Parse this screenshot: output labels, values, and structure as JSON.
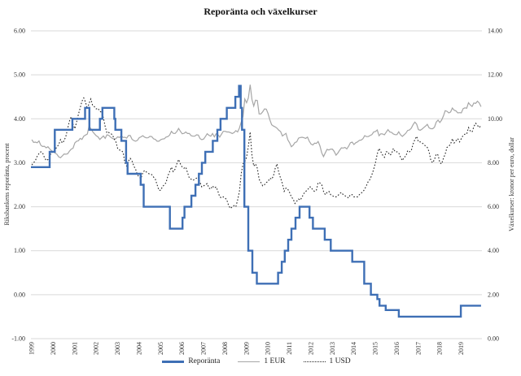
{
  "title": "Reporänta och växelkurser",
  "left_axis": {
    "title": "Riksbankens reporänta, procent",
    "min": -1,
    "max": 6,
    "ticks": [
      "6.00",
      "5.00",
      "4.00",
      "3.00",
      "2.00",
      "1.00",
      "0.00",
      "-1.00"
    ]
  },
  "right_axis": {
    "title": "Växelkurser: kronor per euro, dollar",
    "min": 0,
    "max": 14,
    "ticks": [
      "14.00",
      "12.00",
      "10.00",
      "8.00",
      "6.00",
      "4.00",
      "2.00",
      "0.00"
    ]
  },
  "x_axis": {
    "years": [
      "1999",
      "2000",
      "2001",
      "2002",
      "2003",
      "2004",
      "2005",
      "2006",
      "2007",
      "2008",
      "2009",
      "2010",
      "2011",
      "2012",
      "2013",
      "2014",
      "2015",
      "2016",
      "2017",
      "2018",
      "2019"
    ]
  },
  "colors": {
    "repo_blue": "#3E6FB5",
    "eur_gray": "#A6A6A6",
    "usd_black": "#262626",
    "grid": "#D9D9D9",
    "text": "#333333"
  },
  "legend": [
    {
      "label": "Reporänta",
      "style": "solid-thick",
      "color": "#3E6FB5"
    },
    {
      "label": "1 EUR",
      "style": "solid-thin",
      "color": "#A6A6A6"
    },
    {
      "label": "1 USD",
      "style": "dotted",
      "color": "#262626"
    }
  ],
  "chart_data": {
    "type": "line",
    "title": "Reporänta och växelkurser",
    "x_start": 1999,
    "x_end": 2020,
    "grid": true,
    "legend_position": "bottom",
    "series": [
      {
        "name": "Reporänta",
        "axis": "left",
        "style": "step",
        "color": "#3E6FB5",
        "width": 2.4,
        "points": [
          [
            1999.0,
            2.9
          ],
          [
            1999.87,
            3.25
          ],
          [
            2000.11,
            3.75
          ],
          [
            2000.93,
            4.0
          ],
          [
            2001.52,
            4.25
          ],
          [
            2001.72,
            3.75
          ],
          [
            2002.21,
            4.0
          ],
          [
            2002.33,
            4.25
          ],
          [
            2002.88,
            4.0
          ],
          [
            2002.93,
            3.75
          ],
          [
            2003.21,
            3.5
          ],
          [
            2003.43,
            3.0
          ],
          [
            2003.5,
            2.75
          ],
          [
            2004.11,
            2.5
          ],
          [
            2004.25,
            2.0
          ],
          [
            2005.47,
            1.5
          ],
          [
            2006.06,
            1.75
          ],
          [
            2006.15,
            2.0
          ],
          [
            2006.47,
            2.25
          ],
          [
            2006.66,
            2.5
          ],
          [
            2006.82,
            2.75
          ],
          [
            2006.96,
            3.0
          ],
          [
            2007.12,
            3.25
          ],
          [
            2007.47,
            3.5
          ],
          [
            2007.68,
            3.75
          ],
          [
            2007.83,
            4.0
          ],
          [
            2008.12,
            4.25
          ],
          [
            2008.52,
            4.5
          ],
          [
            2008.69,
            4.75
          ],
          [
            2008.77,
            4.25
          ],
          [
            2008.83,
            3.75
          ],
          [
            2008.94,
            2.0
          ],
          [
            2009.12,
            1.0
          ],
          [
            2009.31,
            0.5
          ],
          [
            2009.52,
            0.25
          ],
          [
            2010.51,
            0.5
          ],
          [
            2010.68,
            0.75
          ],
          [
            2010.82,
            1.0
          ],
          [
            2010.98,
            1.25
          ],
          [
            2011.13,
            1.5
          ],
          [
            2011.32,
            1.75
          ],
          [
            2011.51,
            2.0
          ],
          [
            2011.97,
            1.75
          ],
          [
            2012.13,
            1.5
          ],
          [
            2012.68,
            1.25
          ],
          [
            2012.96,
            1.0
          ],
          [
            2013.96,
            0.75
          ],
          [
            2014.52,
            0.25
          ],
          [
            2014.83,
            0.0
          ],
          [
            2015.13,
            -0.1
          ],
          [
            2015.23,
            -0.25
          ],
          [
            2015.52,
            -0.35
          ],
          [
            2016.13,
            -0.5
          ],
          [
            2019.02,
            -0.25
          ]
        ]
      },
      {
        "name": "1 EUR",
        "axis": "right",
        "style": "line",
        "color": "#A6A6A6",
        "width": 1.2,
        "start": 1999,
        "step_months": 1,
        "values": [
          9.05,
          8.93,
          8.94,
          8.91,
          8.99,
          8.8,
          8.74,
          8.75,
          8.68,
          8.73,
          8.63,
          8.55,
          8.5,
          8.44,
          8.39,
          8.27,
          8.23,
          8.31,
          8.4,
          8.39,
          8.41,
          8.53,
          8.62,
          8.66,
          8.9,
          8.98,
          9.0,
          9.11,
          9.06,
          9.21,
          9.26,
          9.31,
          9.67,
          9.55,
          9.42,
          9.32,
          9.23,
          9.18,
          9.06,
          9.14,
          9.22,
          9.11,
          9.27,
          9.25,
          9.17,
          9.11,
          9.08,
          9.1,
          9.18,
          9.15,
          9.23,
          9.15,
          9.16,
          9.12,
          9.24,
          9.24,
          9.07,
          9.01,
          8.98,
          9.02,
          9.14,
          9.18,
          9.23,
          9.17,
          9.13,
          9.14,
          9.2,
          9.19,
          9.09,
          9.06,
          8.98,
          8.98,
          9.05,
          9.08,
          9.09,
          9.17,
          9.19,
          9.26,
          9.43,
          9.34,
          9.33,
          9.42,
          9.56,
          9.43,
          9.32,
          9.34,
          9.4,
          9.33,
          9.33,
          9.23,
          9.21,
          9.21,
          9.27,
          9.26,
          9.1,
          9.05,
          9.08,
          9.19,
          9.32,
          9.25,
          9.21,
          9.33,
          9.18,
          9.32,
          9.28,
          9.17,
          9.3,
          9.43,
          9.43,
          9.4,
          9.4,
          9.37,
          9.33,
          9.37,
          9.46,
          9.4,
          9.58,
          9.85,
          10.1,
          10.9,
          10.73,
          10.95,
          11.55,
          10.88,
          10.58,
          10.85,
          10.83,
          10.22,
          10.22,
          10.32,
          10.45,
          10.44,
          10.24,
          9.95,
          9.73,
          9.67,
          9.63,
          9.57,
          9.48,
          9.42,
          9.22,
          9.28,
          9.34,
          9.05,
          8.91,
          8.73,
          8.8,
          8.92,
          8.95,
          9.12,
          9.15,
          9.16,
          9.14,
          9.11,
          9.17,
          8.98,
          8.85,
          8.81,
          8.89,
          8.88,
          8.97,
          8.77,
          8.45,
          8.28,
          8.45,
          8.61,
          8.58,
          8.62,
          8.62,
          8.51,
          8.35,
          8.44,
          8.57,
          8.68,
          8.67,
          8.7,
          8.63,
          8.75,
          8.91,
          8.94,
          8.83,
          8.91,
          8.95,
          9.02,
          9.03,
          9.09,
          9.23,
          9.19,
          9.19,
          9.24,
          9.28,
          9.4,
          9.42,
          9.49,
          9.23,
          9.32,
          9.31,
          9.27,
          9.39,
          9.51,
          9.4,
          9.38,
          9.31,
          9.28,
          9.28,
          9.41,
          9.27,
          9.2,
          9.27,
          9.35,
          9.47,
          9.49,
          9.57,
          9.73,
          9.85,
          9.76,
          9.51,
          9.48,
          9.53,
          9.6,
          9.67,
          9.75,
          9.59,
          9.55,
          9.55,
          9.62,
          9.85,
          9.94,
          9.83,
          9.94,
          10.13,
          10.37,
          10.34,
          10.27,
          10.31,
          10.49,
          10.39,
          10.36,
          10.27,
          10.28,
          10.27,
          10.46,
          10.5,
          10.48,
          10.73,
          10.63,
          10.56,
          10.72,
          10.7,
          10.8,
          10.72,
          10.55
        ]
      },
      {
        "name": "1 USD",
        "axis": "right",
        "style": "dotted",
        "color": "#262626",
        "width": 1.1,
        "start": 1999,
        "step_months": 1,
        "values": [
          7.9,
          8.0,
          8.1,
          8.3,
          8.42,
          8.5,
          8.45,
          8.25,
          8.1,
          8.15,
          8.3,
          8.48,
          8.47,
          8.6,
          8.72,
          8.82,
          9.05,
          8.9,
          9.0,
          9.2,
          9.55,
          9.9,
          10.1,
          9.75,
          9.55,
          9.85,
          10.2,
          10.5,
          10.8,
          10.95,
          10.75,
          10.45,
          10.7,
          10.9,
          10.6,
          10.55,
          10.45,
          10.48,
          10.34,
          10.3,
          10.05,
          9.65,
          9.35,
          9.38,
          9.33,
          9.28,
          9.09,
          8.95,
          8.64,
          8.58,
          8.56,
          8.48,
          8.0,
          7.85,
          8.08,
          8.2,
          8.08,
          7.85,
          7.7,
          7.45,
          7.35,
          7.28,
          7.55,
          7.65,
          7.58,
          7.52,
          7.48,
          7.46,
          7.35,
          7.25,
          7.0,
          6.75,
          6.75,
          6.92,
          7.0,
          7.1,
          7.4,
          7.6,
          7.8,
          7.6,
          7.7,
          7.95,
          8.15,
          7.95,
          7.8,
          7.75,
          7.8,
          7.55,
          7.3,
          7.25,
          7.2,
          7.25,
          7.3,
          7.35,
          7.1,
          6.9,
          6.95,
          7.0,
          7.05,
          6.85,
          6.8,
          6.95,
          6.85,
          6.9,
          6.7,
          6.45,
          6.4,
          6.45,
          6.4,
          6.3,
          6.05,
          5.92,
          6.0,
          6.05,
          6.0,
          6.3,
          6.7,
          7.5,
          7.95,
          8.05,
          8.25,
          8.75,
          9.4,
          8.35,
          7.85,
          7.95,
          7.75,
          7.25,
          7.1,
          6.95,
          7.0,
          7.1,
          7.15,
          7.3,
          7.25,
          7.4,
          7.75,
          7.95,
          7.55,
          7.3,
          7.05,
          6.7,
          6.85,
          6.8,
          6.65,
          6.45,
          6.35,
          6.15,
          6.25,
          6.35,
          6.3,
          6.45,
          6.6,
          6.7,
          6.75,
          6.9,
          6.9,
          6.75,
          6.7,
          6.75,
          7.1,
          7.08,
          7.0,
          6.7,
          6.55,
          6.65,
          6.7,
          6.55,
          6.5,
          6.45,
          6.45,
          6.5,
          6.6,
          6.65,
          6.55,
          6.5,
          6.45,
          6.4,
          6.55,
          6.55,
          6.45,
          6.45,
          6.45,
          6.55,
          6.62,
          6.68,
          6.8,
          6.97,
          7.15,
          7.25,
          7.45,
          7.7,
          8.0,
          8.4,
          8.65,
          8.5,
          8.35,
          8.25,
          8.5,
          8.5,
          8.35,
          8.4,
          8.65,
          8.5,
          8.5,
          8.45,
          8.25,
          8.1,
          8.25,
          8.3,
          8.55,
          8.5,
          8.55,
          8.85,
          9.05,
          9.2,
          8.95,
          8.95,
          8.9,
          8.85,
          8.75,
          8.7,
          8.5,
          8.1,
          8.0,
          8.15,
          8.4,
          8.35,
          8.0,
          7.95,
          8.2,
          8.4,
          8.7,
          8.75,
          8.85,
          9.1,
          8.9,
          9.0,
          9.1,
          8.95,
          9.1,
          9.25,
          9.3,
          9.3,
          9.6,
          9.45,
          9.4,
          9.65,
          9.8,
          9.7,
          9.6,
          9.7
        ]
      }
    ]
  }
}
